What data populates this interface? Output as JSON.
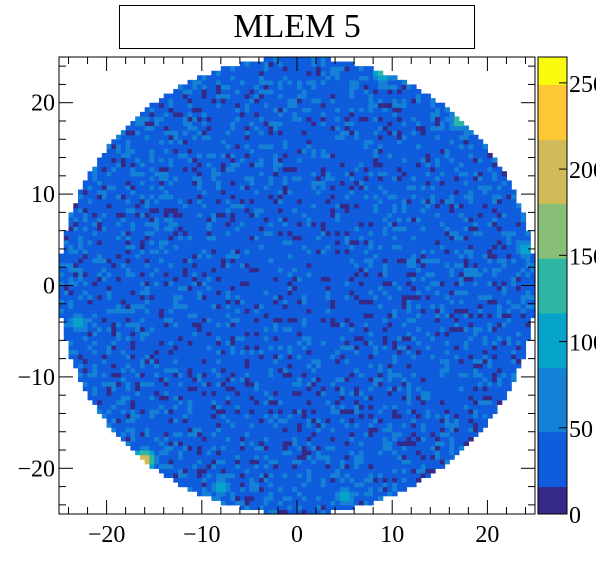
{
  "title": "MLEM 5",
  "chart_data": {
    "type": "heatmap",
    "title": "MLEM 5",
    "xlabel": "",
    "ylabel": "",
    "xlim": [
      -25,
      25
    ],
    "ylim": [
      -25,
      25
    ],
    "x_ticks": [
      -20,
      -10,
      0,
      10,
      20
    ],
    "y_ticks": [
      -20,
      -10,
      0,
      10,
      20
    ],
    "x_tick_labels": [
      "−20",
      "−10",
      "0",
      "10",
      "20"
    ],
    "y_tick_labels": [
      "−20",
      "−10",
      "0",
      "10",
      "20"
    ],
    "z_range": [
      0,
      265
    ],
    "z_ticks": [
      0,
      50,
      100,
      150,
      200,
      250
    ],
    "z_tick_labels": [
      "0",
      "50",
      "100",
      "150",
      "200",
      "250"
    ],
    "reconstruction_radius": 25,
    "typical_interior_value": 15,
    "typical_speckle_value": 60,
    "peak_speckle_value": 225,
    "hotspots": [
      {
        "x": -16,
        "y": -19,
        "value": 225
      },
      {
        "x": 9,
        "y": 23.5,
        "value": 160
      },
      {
        "x": 17,
        "y": 18,
        "value": 130
      },
      {
        "x": -20,
        "y": -16,
        "value": 120
      },
      {
        "x": -8,
        "y": -22,
        "value": 110
      },
      {
        "x": 5,
        "y": -23,
        "value": 115
      },
      {
        "x": 24,
        "y": 4,
        "value": 105
      },
      {
        "x": -23,
        "y": -4,
        "value": 100
      }
    ],
    "colormap": [
      "#352a87",
      "#0f5cdd",
      "#1481d6",
      "#06a4ca",
      "#2eb7a4",
      "#87bf77",
      "#d1bb59",
      "#fec832",
      "#f9fb0e"
    ],
    "grid": false,
    "legend": "colorbar-right"
  }
}
